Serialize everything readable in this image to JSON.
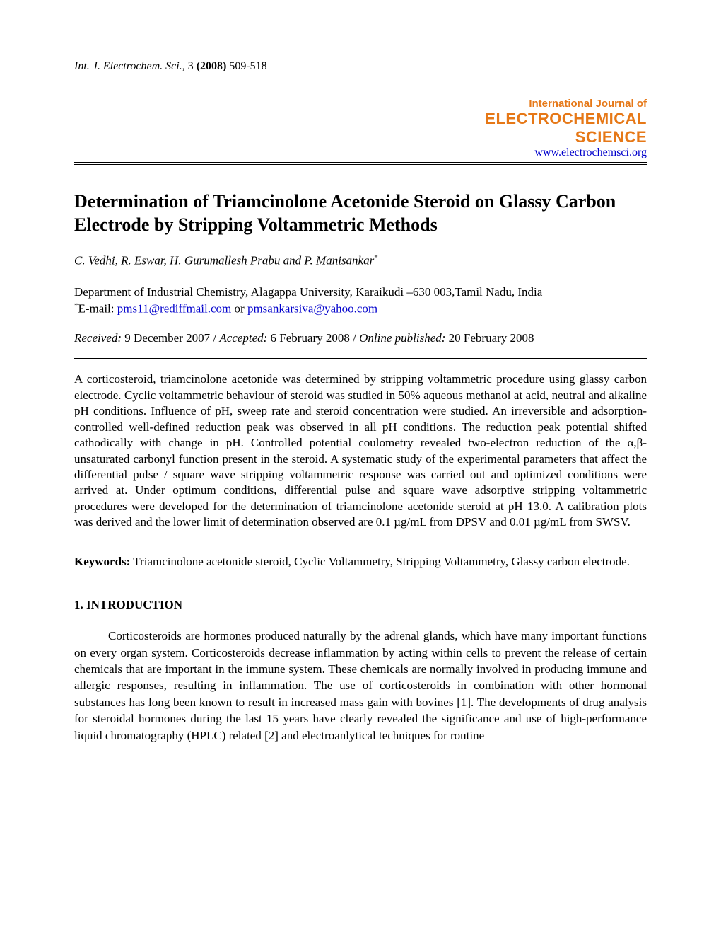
{
  "running_head": {
    "journal_abbrev": "Int. J. Electrochem. Sci.,",
    "volume": "3",
    "year": "(2008)",
    "pages": "509-518"
  },
  "journal_box": {
    "line1": "International Journal of",
    "line2": "ELECTROCHEMICAL",
    "line3": "SCIENCE",
    "url": "www.electrochemsci.org",
    "brand_color": "#e67817",
    "url_color": "#0000cc"
  },
  "title": "Determination of Triamcinolone Acetonide Steroid on Glassy Carbon Electrode by Stripping Voltammetric Methods",
  "authors": "C. Vedhi, R. Eswar, H. Gurumallesh Prabu and P. Manisankar",
  "author_marker": "*",
  "affiliation": "Department of Industrial Chemistry, Alagappa University, Karaikudi –630 003,Tamil Nadu, India",
  "email": {
    "marker": "*",
    "prefix": "E-mail: ",
    "addr1": "pms11@rediffmail.com",
    "sep": " or ",
    "addr2": "pmsankarsiva@yahoo.com"
  },
  "dates": {
    "received_label": "Received:",
    "received": "  9 December 2007  /  ",
    "accepted_label": "Accepted:",
    "accepted": "  6 February 2008  / ",
    "online_label": "Online published:",
    "online": " 20 February 2008"
  },
  "abstract": "A corticosteroid, triamcinolone acetonide was determined by stripping voltammetric procedure using glassy carbon electrode.  Cyclic voltammetric behaviour of steroid was studied in 50% aqueous methanol at acid, neutral and alkaline pH conditions. Influence of pH, sweep rate and steroid concentration were studied. An irreversible and adsorption-controlled well-defined reduction peak was observed in all pH conditions. The reduction peak potential shifted cathodically with change in pH. Controlled potential coulometry revealed two-electron reduction of the α,β-unsaturated carbonyl function present in the steroid. A systematic study of the experimental parameters that affect the differential pulse / square wave stripping voltammetric response was carried out and optimized conditions were arrived at. Under optimum conditions, differential pulse and square wave adsorptive stripping voltammetric procedures were developed for the determination of triamcinolone acetonide steroid at pH 13.0. A calibration plots was derived and the lower limit of determination observed are 0.1 µg/mL from DPSV and 0.01 µg/mL from SWSV.",
  "keywords": {
    "label": "Keywords:",
    "text": " Triamcinolone acetonide steroid, Cyclic Voltammetry, Stripping Voltammetry, Glassy carbon electrode."
  },
  "section1": {
    "heading": "1. INTRODUCTION",
    "para1": "Corticosteroids are hormones produced naturally by the adrenal glands, which have many important functions on every organ system. Corticosteroids decrease inflammation by acting within cells to prevent the release of certain chemicals that are important in the immune system. These chemicals are normally involved in producing immune and allergic responses, resulting in inflammation. The use of corticosteroids in combination with other hormonal substances has long been known to result in increased mass gain with bovines [1]. The developments of drug analysis for steroidal hormones during the last 15 years have clearly revealed the significance and use of high-performance liquid chromatography (HPLC) related [2] and electroanlytical techniques for routine"
  }
}
